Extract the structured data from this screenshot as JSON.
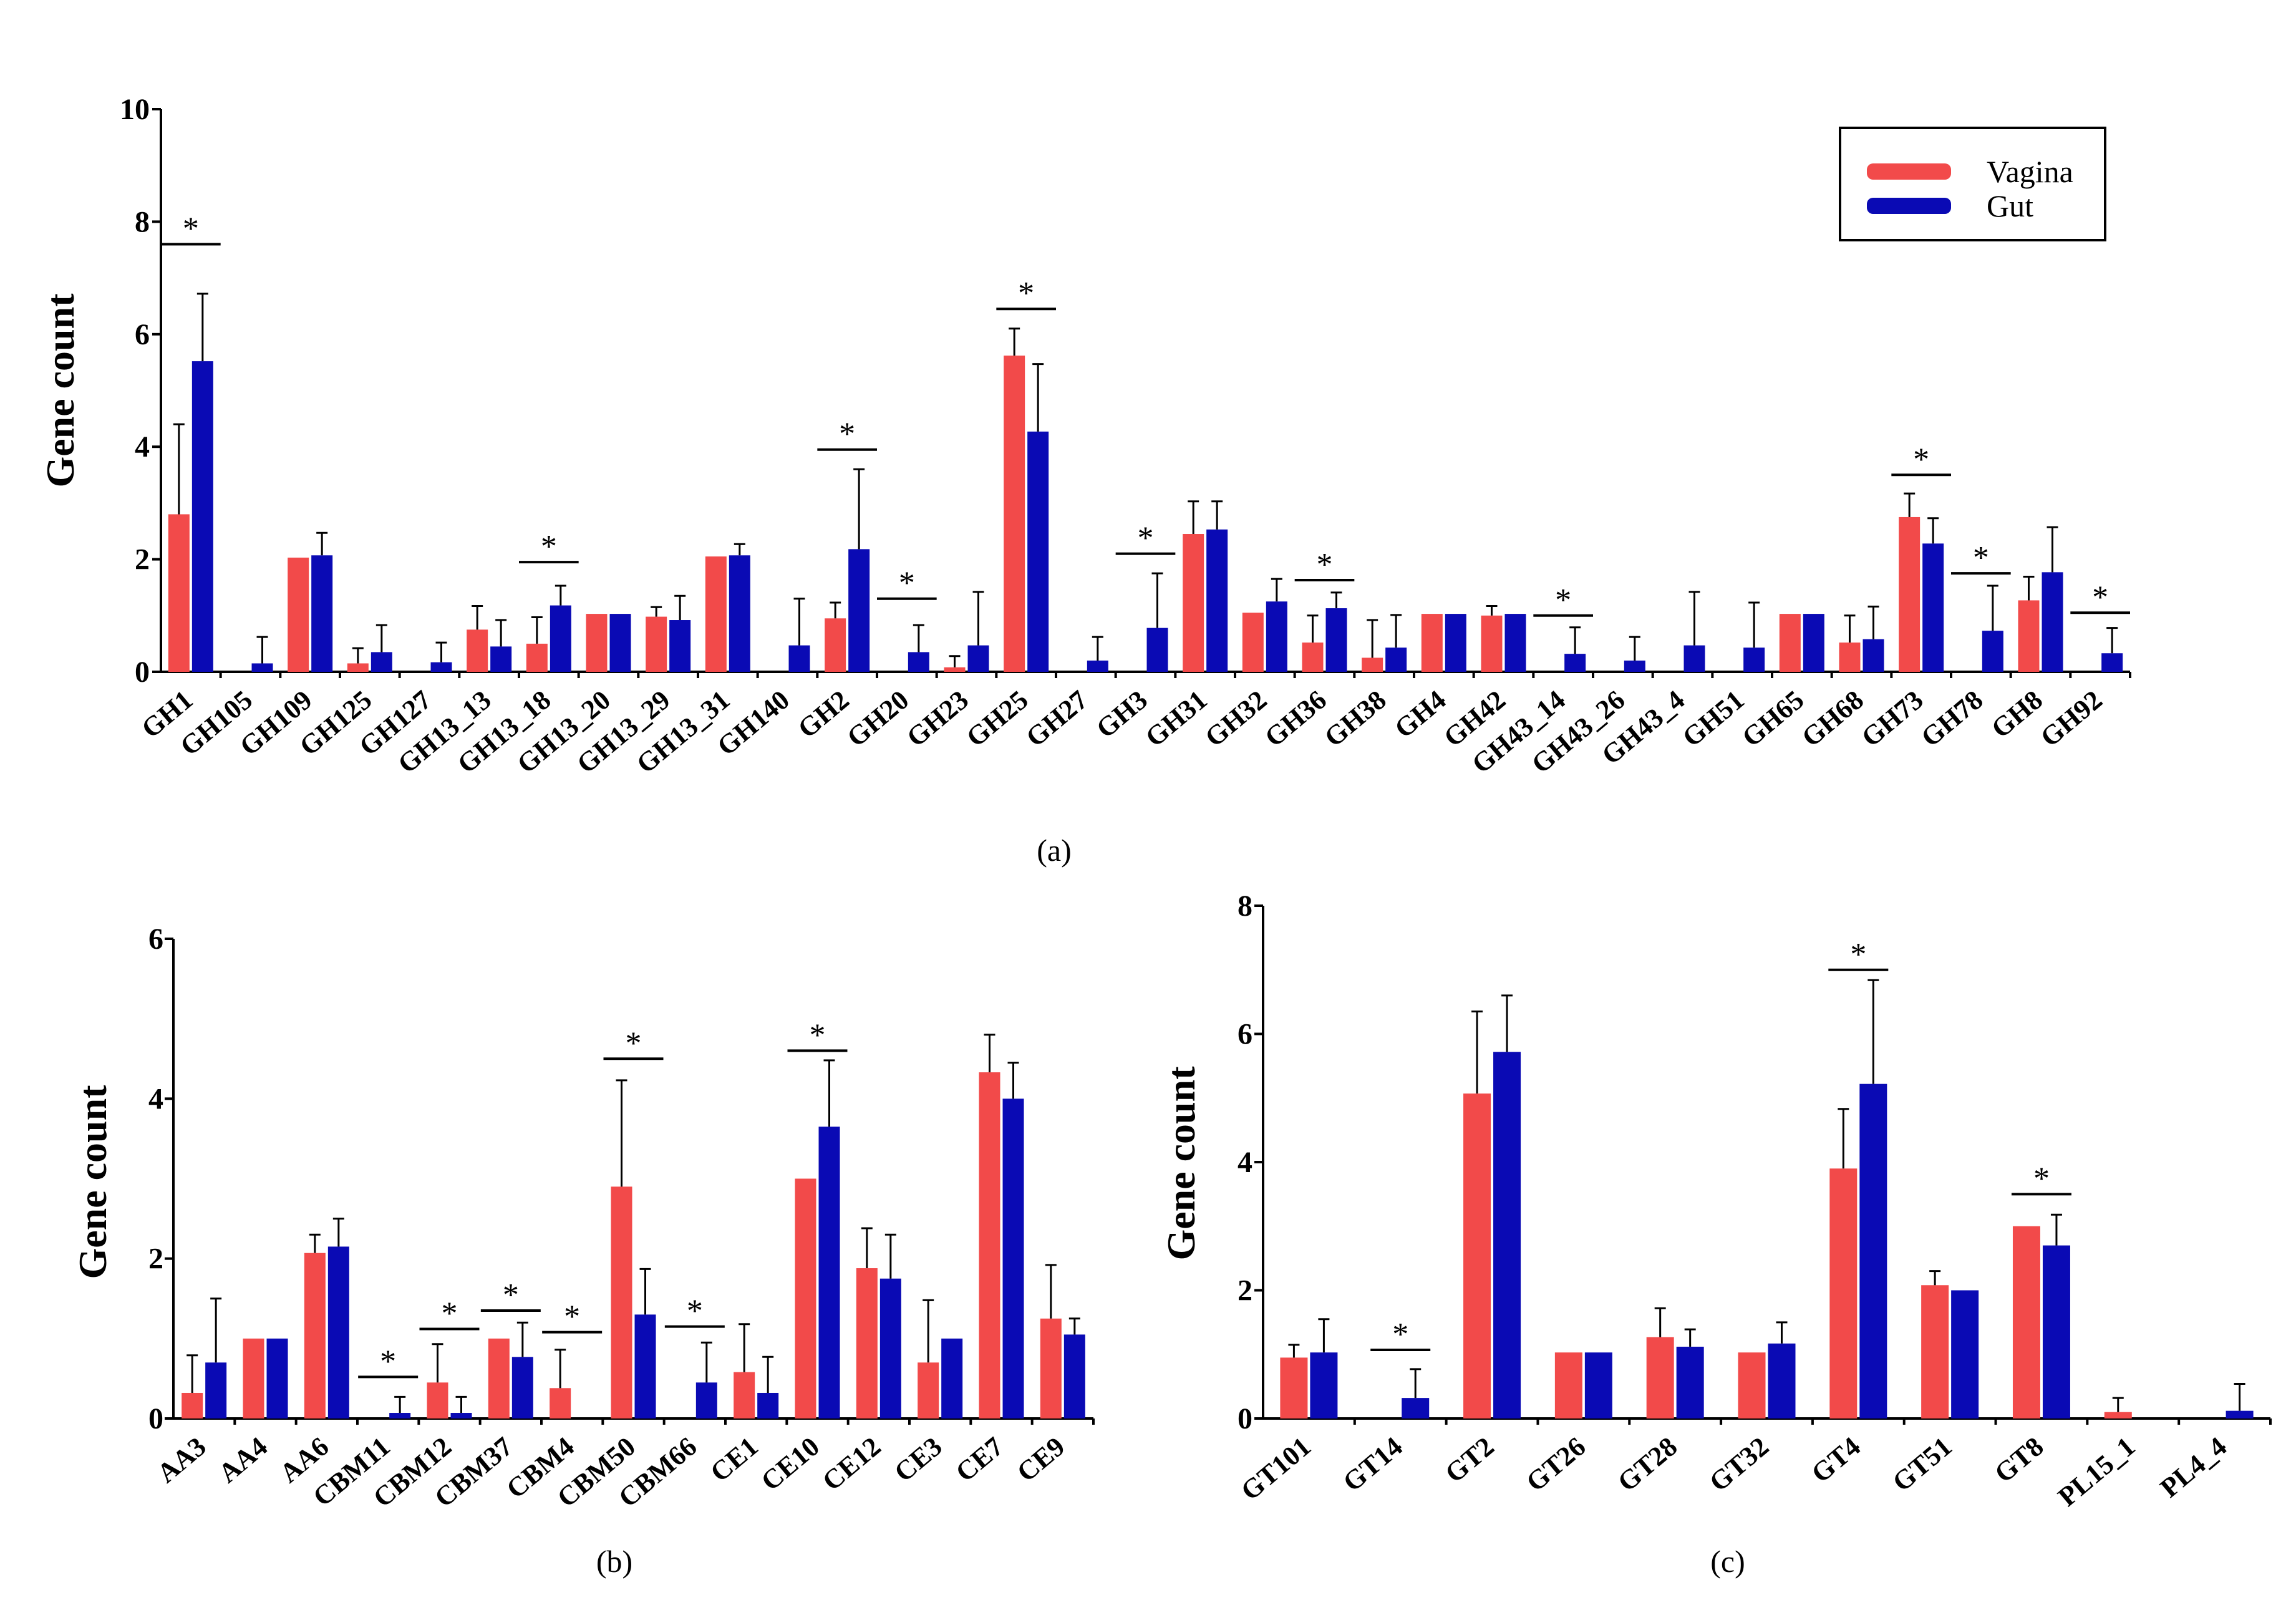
{
  "legend": {
    "items": [
      {
        "name": "Vagina",
        "color": "#f24a4a"
      },
      {
        "name": "Gut",
        "color": "#0a0ab4"
      }
    ]
  },
  "chart_data": [
    {
      "type": "bar",
      "panel": "(a)",
      "ylabel": "Gene count",
      "xlabel": "",
      "ylim": [
        0,
        10
      ],
      "yticks": [
        "0",
        "2",
        "4",
        "6",
        "8",
        "10"
      ],
      "categories": [
        "GH1",
        "GH105",
        "GH109",
        "GH125",
        "GH127",
        "GH13_13",
        "GH13_18",
        "GH13_20",
        "GH13_29",
        "GH13_31",
        "GH140",
        "GH2",
        "GH20",
        "GH23",
        "GH25",
        "GH27",
        "GH3",
        "GH31",
        "GH32",
        "GH36",
        "GH38",
        "GH4",
        "GH42",
        "GH43_14",
        "GH43_26",
        "GH43_4",
        "GH51",
        "GH65",
        "GH68",
        "GH73",
        "GH78",
        "GH8",
        "GH92"
      ],
      "series": [
        {
          "name": "Vagina",
          "values": [
            2.8,
            0,
            2.03,
            0.15,
            0,
            0.75,
            0.5,
            1.03,
            0.98,
            2.05,
            0,
            0.95,
            0,
            0.08,
            5.62,
            0,
            0,
            2.45,
            1.05,
            0.52,
            0.25,
            1.03,
            1.0,
            0,
            0,
            0,
            0,
            1.03,
            0.52,
            2.75,
            0,
            1.27,
            0
          ],
          "errors": [
            1.6,
            0,
            0,
            0.27,
            0,
            0.42,
            0.47,
            0,
            0.17,
            0,
            0,
            0.28,
            0,
            0.2,
            0.48,
            0,
            0,
            0.58,
            0,
            0.48,
            0.67,
            0,
            0.17,
            0,
            0,
            0,
            0,
            0,
            0.48,
            0.42,
            0,
            0.42,
            0
          ]
        },
        {
          "name": "Gut",
          "values": [
            5.52,
            0.15,
            2.07,
            0.35,
            0.17,
            0.45,
            1.18,
            1.03,
            0.92,
            2.07,
            0.47,
            2.18,
            0.35,
            0.47,
            4.27,
            0.2,
            0.78,
            2.53,
            1.25,
            1.13,
            0.43,
            1.03,
            1.03,
            0.32,
            0.2,
            0.47,
            0.43,
            1.03,
            0.58,
            2.28,
            0.73,
            1.77,
            0.33
          ],
          "errors": [
            1.2,
            0.47,
            0.4,
            0.48,
            0.35,
            0.47,
            0.35,
            0,
            0.43,
            0.2,
            0.83,
            1.42,
            0.48,
            0.95,
            1.2,
            0.42,
            0.97,
            0.5,
            0.4,
            0.28,
            0.58,
            0,
            0,
            0.47,
            0.42,
            0.95,
            0.8,
            0,
            0.58,
            0.45,
            0.8,
            0.8,
            0.45
          ]
        }
      ],
      "significance": [
        {
          "category": "GH1",
          "y": 7.6,
          "label": "*"
        },
        {
          "category": "GH13_18",
          "y": 1.95,
          "label": "*"
        },
        {
          "category": "GH2",
          "y": 3.95,
          "label": "*"
        },
        {
          "category": "GH20",
          "y": 1.3,
          "label": "*"
        },
        {
          "category": "GH25",
          "y": 6.45,
          "label": "*"
        },
        {
          "category": "GH3",
          "y": 2.1,
          "label": "*"
        },
        {
          "category": "GH36",
          "y": 1.63,
          "label": "*"
        },
        {
          "category": "GH43_14",
          "y": 1.0,
          "label": "*"
        },
        {
          "category": "GH73",
          "y": 3.5,
          "label": "*"
        },
        {
          "category": "GH78",
          "y": 1.75,
          "label": "*"
        },
        {
          "category": "GH92",
          "y": 1.05,
          "label": "*"
        }
      ]
    },
    {
      "type": "bar",
      "panel": "(b)",
      "ylabel": "Gene count",
      "xlabel": "",
      "ylim": [
        0,
        6
      ],
      "yticks": [
        "0",
        "2",
        "4",
        "6"
      ],
      "categories": [
        "AA3",
        "AA4",
        "AA6",
        "CBM11",
        "CBM12",
        "CBM37",
        "CBM4",
        "CBM50",
        "CBM66",
        "CE1",
        "CE10",
        "CE12",
        "CE3",
        "CE7",
        "CE9"
      ],
      "series": [
        {
          "name": "Vagina",
          "values": [
            0.32,
            1.0,
            2.07,
            0,
            0.45,
            1.0,
            0.38,
            2.9,
            0,
            0.58,
            3.0,
            1.88,
            0.7,
            4.33,
            1.25
          ],
          "errors": [
            0.47,
            0,
            0.23,
            0,
            0.48,
            0,
            0.48,
            1.33,
            0,
            0.6,
            0,
            0.5,
            0.78,
            0.47,
            0.67
          ]
        },
        {
          "name": "Gut",
          "values": [
            0.7,
            1.0,
            2.15,
            0.07,
            0.07,
            0.77,
            0,
            1.3,
            0.45,
            0.32,
            3.65,
            1.75,
            1.0,
            4.0,
            1.05
          ],
          "errors": [
            0.8,
            0,
            0.35,
            0.2,
            0.2,
            0.43,
            0,
            0.57,
            0.5,
            0.45,
            0.83,
            0.55,
            0,
            0.45,
            0.2
          ]
        }
      ],
      "significance": [
        {
          "category": "CBM11",
          "y": 0.52,
          "label": "*"
        },
        {
          "category": "CBM12",
          "y": 1.12,
          "label": "*"
        },
        {
          "category": "CBM37",
          "y": 1.35,
          "label": "*"
        },
        {
          "category": "CBM4",
          "y": 1.08,
          "label": "*"
        },
        {
          "category": "CBM50",
          "y": 4.5,
          "label": "*"
        },
        {
          "category": "CBM66",
          "y": 1.15,
          "label": "*"
        },
        {
          "category": "CE10",
          "y": 4.6,
          "label": "*"
        }
      ]
    },
    {
      "type": "bar",
      "panel": "(c)",
      "ylabel": "Gene count",
      "xlabel": "",
      "ylim": [
        0,
        8
      ],
      "yticks": [
        "0",
        "2",
        "4",
        "6",
        "8"
      ],
      "categories": [
        "GT101",
        "GT14",
        "GT2",
        "GT26",
        "GT28",
        "GT32",
        "GT4",
        "GT51",
        "GT8",
        "PL15_1",
        "PL4_4"
      ],
      "series": [
        {
          "name": "Vagina",
          "values": [
            0.95,
            0,
            5.07,
            1.03,
            1.27,
            1.03,
            3.9,
            2.08,
            3.0,
            0.1,
            0
          ],
          "errors": [
            0.2,
            0,
            1.28,
            0,
            0.45,
            0,
            0.93,
            0.22,
            0,
            0.22,
            0
          ]
        },
        {
          "name": "Gut",
          "values": [
            1.03,
            0.32,
            5.72,
            1.03,
            1.12,
            1.17,
            5.22,
            2.0,
            2.7,
            0,
            0.12
          ],
          "errors": [
            0.52,
            0.45,
            0.88,
            0,
            0.27,
            0.33,
            1.62,
            0,
            0.48,
            0,
            0.42
          ]
        }
      ],
      "significance": [
        {
          "category": "GT14",
          "y": 1.07,
          "label": "*"
        },
        {
          "category": "GT4",
          "y": 7.0,
          "label": "*"
        },
        {
          "category": "GT8",
          "y": 3.5,
          "label": "*"
        }
      ]
    }
  ]
}
